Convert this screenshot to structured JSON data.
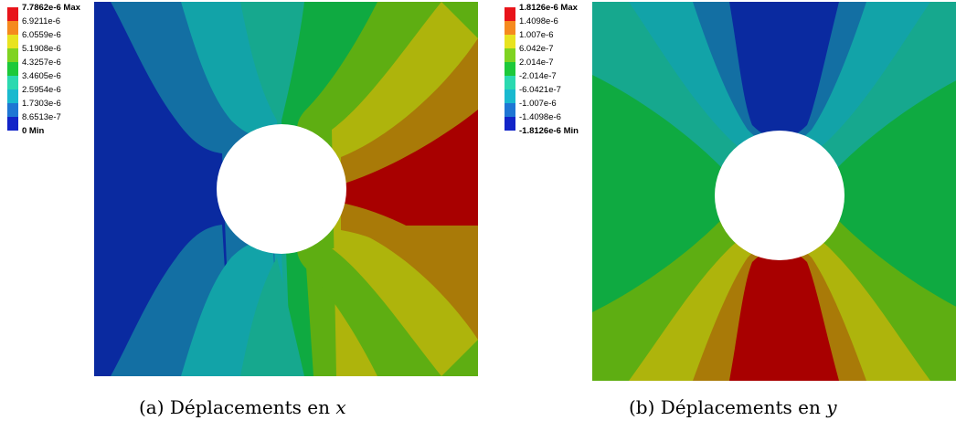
{
  "figures": [
    {
      "id": "a",
      "caption_prefix": "(a) Déplacements en",
      "caption_var": "x",
      "legend": {
        "labels": [
          "7.7862e-6 Max",
          "6.9211e-6",
          "6.0559e-6",
          "5.1908e-6",
          "4.3257e-6",
          "3.4605e-6",
          "2.5954e-6",
          "1.7303e-6",
          "8.6513e-7",
          "0 Min"
        ],
        "colors": [
          "#e8141a",
          "#f58a1e",
          "#e8e320",
          "#7fd321",
          "#1dc93a",
          "#2bd9b0",
          "#19b9cf",
          "#1e76d4",
          "#1224c8"
        ]
      },
      "band_colors": [
        "#0a2aa0",
        "#136fa3",
        "#12a3a8",
        "#16a88e",
        "#0faa41",
        "#5eae12",
        "#aeb40c",
        "#a97a08",
        "#a80000"
      ]
    },
    {
      "id": "b",
      "caption_prefix": "(b) Déplacements en",
      "caption_var": "y",
      "legend": {
        "labels": [
          "1.8126e-6 Max",
          "1.4098e-6",
          "1.007e-6",
          "6.042e-7",
          "2.014e-7",
          "-2.014e-7",
          "-6.0421e-7",
          "-1.007e-6",
          "-1.4098e-6",
          "-1.8126e-6 Min"
        ],
        "colors": [
          "#e8141a",
          "#f58a1e",
          "#e8e320",
          "#7fd321",
          "#1dc93a",
          "#2bd9b0",
          "#19b9cf",
          "#1e76d4",
          "#1224c8"
        ]
      },
      "band_colors": [
        "#0a2aa0",
        "#136fa3",
        "#12a3a8",
        "#16a88e",
        "#0faa41",
        "#5eae12",
        "#aeb40c",
        "#a97a08",
        "#a80000"
      ]
    }
  ]
}
